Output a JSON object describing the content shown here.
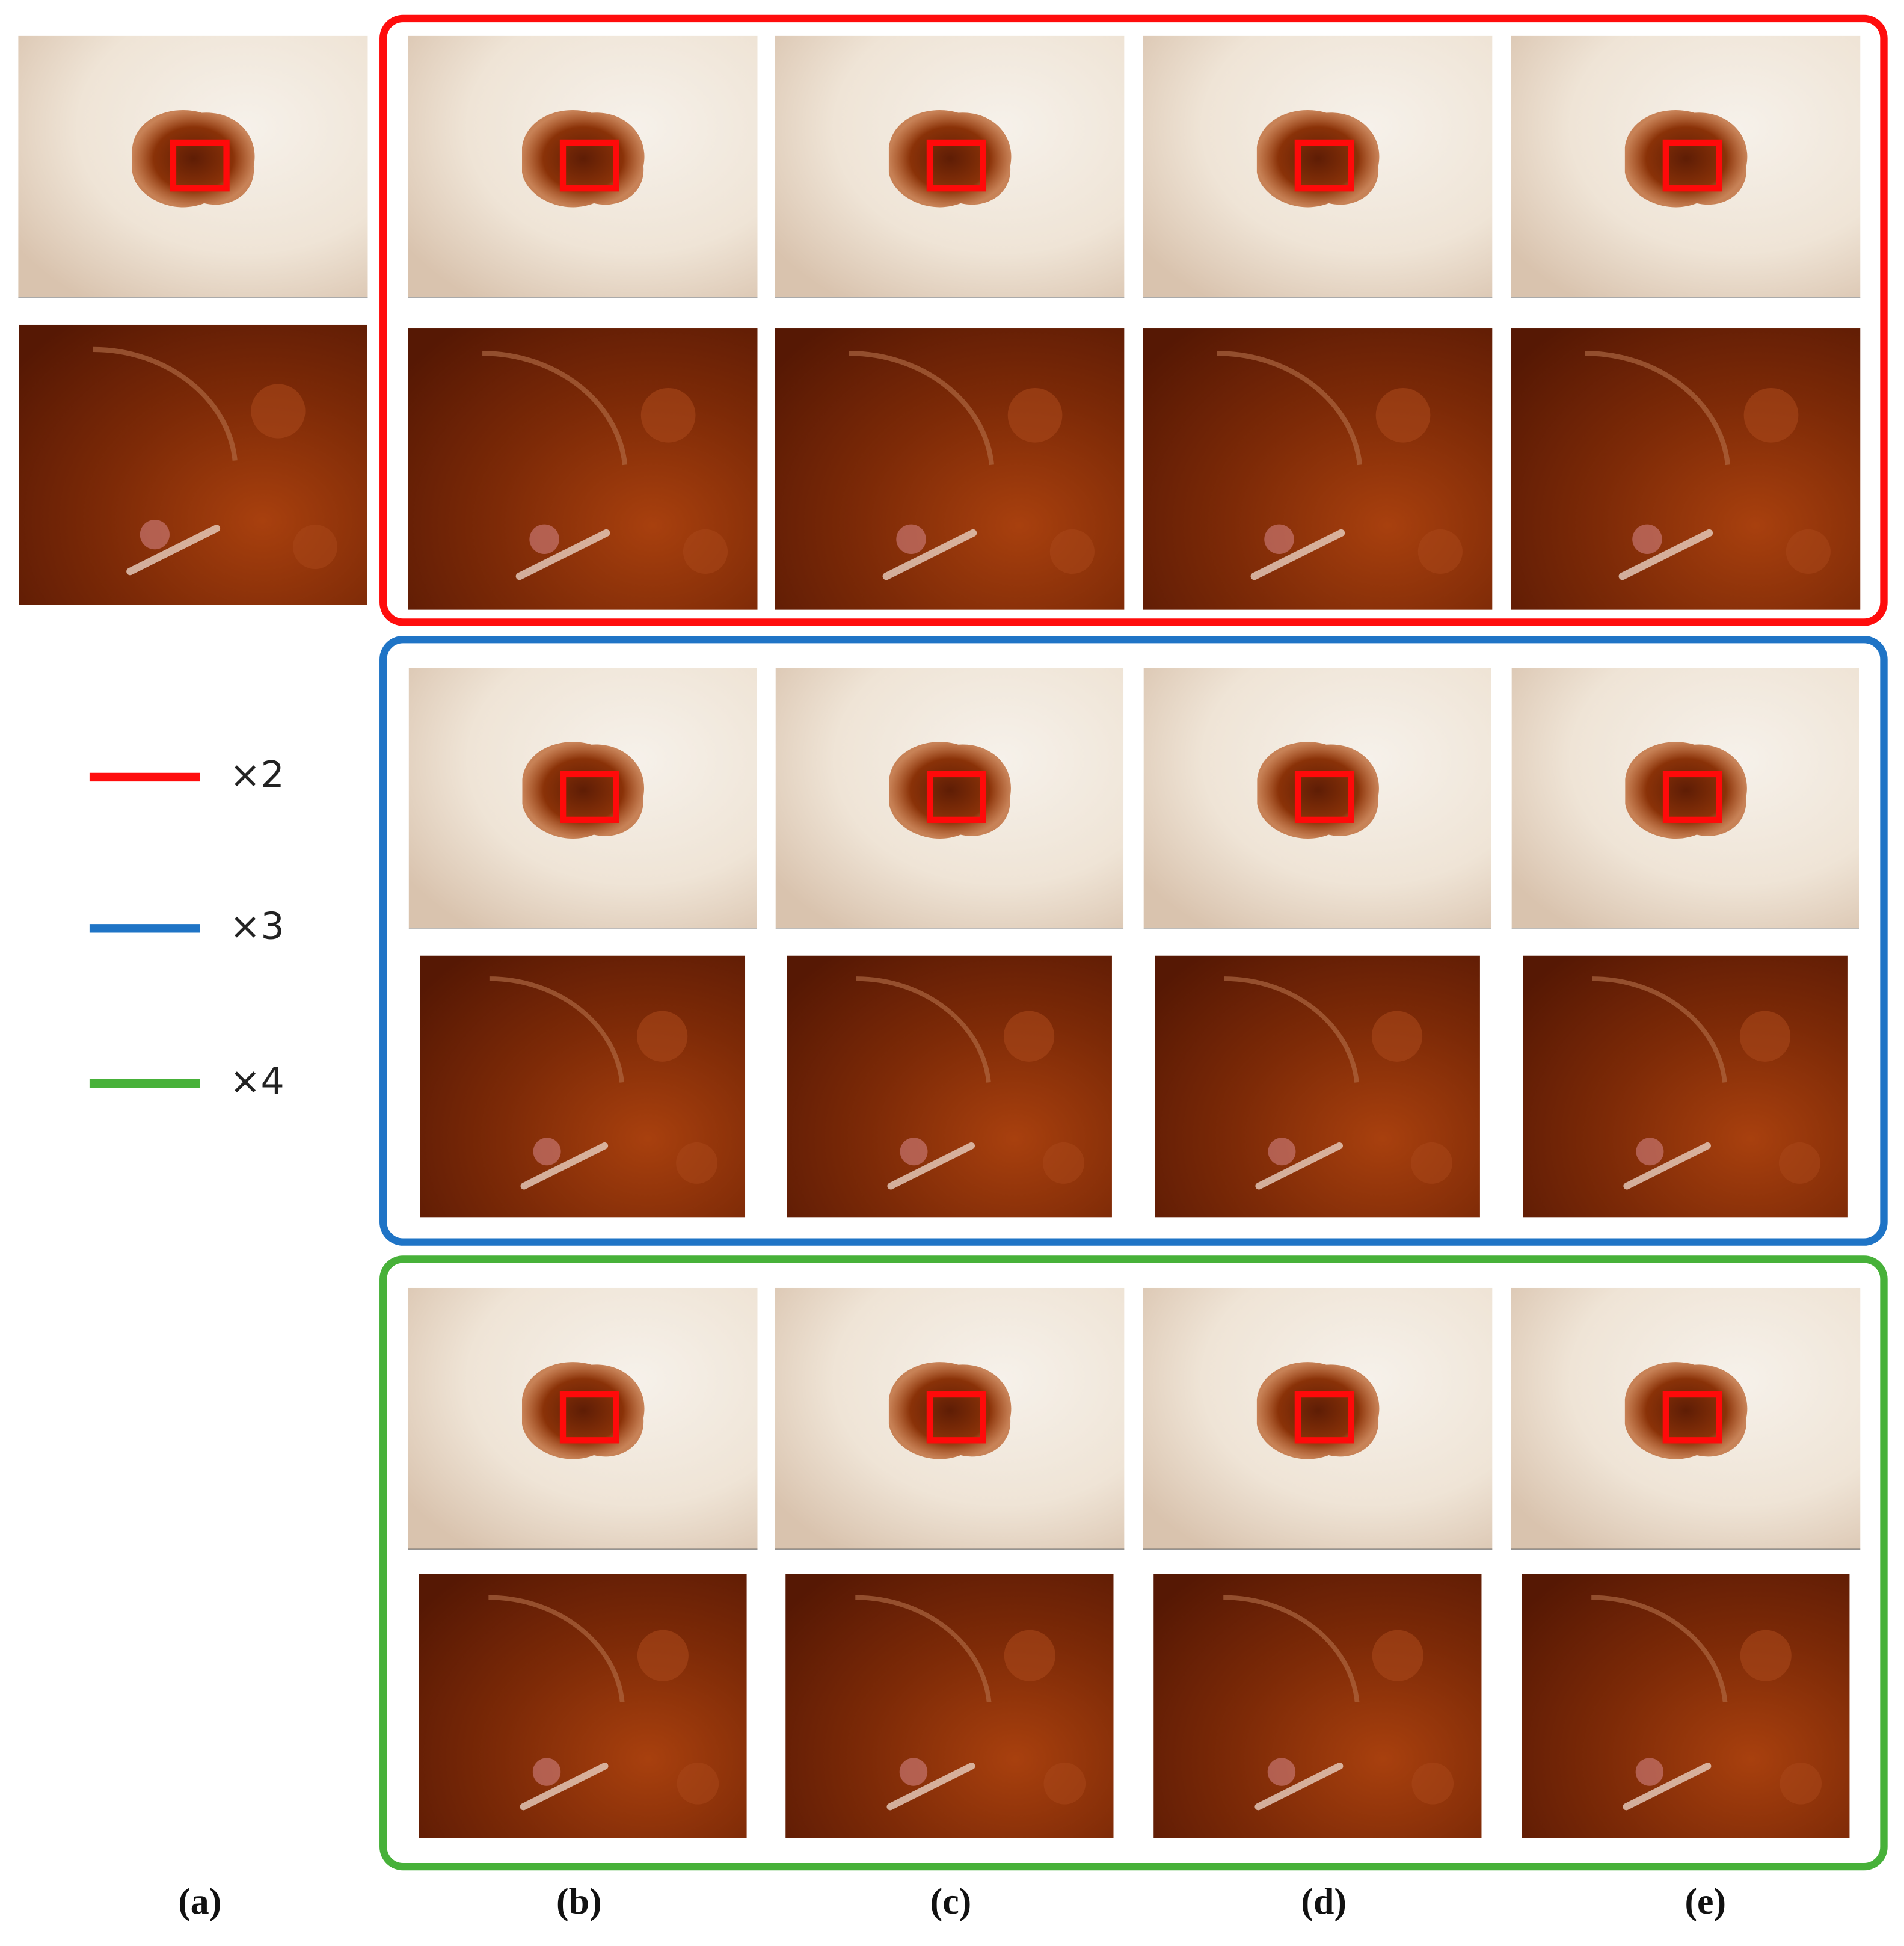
{
  "legend": [
    {
      "label": "×2",
      "color": "#ff0d0d"
    },
    {
      "label": "×3",
      "color": "#1f74c6"
    },
    {
      "label": "×4",
      "color": "#47b139"
    }
  ],
  "columns": [
    "(a)",
    "(b)",
    "(c)",
    "(d)",
    "(e)"
  ]
}
